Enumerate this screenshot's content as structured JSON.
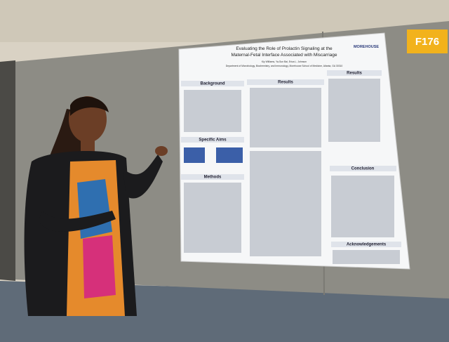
{
  "sign": {
    "label": "F176"
  },
  "poster": {
    "title_line1": "Evaluating the Role of Prolactin Signaling at the",
    "title_line2": "Maternal-Fetal Interface Associated with Miscarriage",
    "logo": "MOREHOUSE",
    "authors": "Kiy Williams, Ya-Sun Bai, Erica L. Johnson",
    "affiliation": "Department of Microbiology, Biochemistry, and Immunology, Morehouse School of Medicine, Atlanta, GA 30310",
    "sections": [
      "Background",
      "Results",
      "Results",
      "Specific Aims",
      "Methods",
      "Conclusion",
      "Acknowledgements"
    ]
  }
}
